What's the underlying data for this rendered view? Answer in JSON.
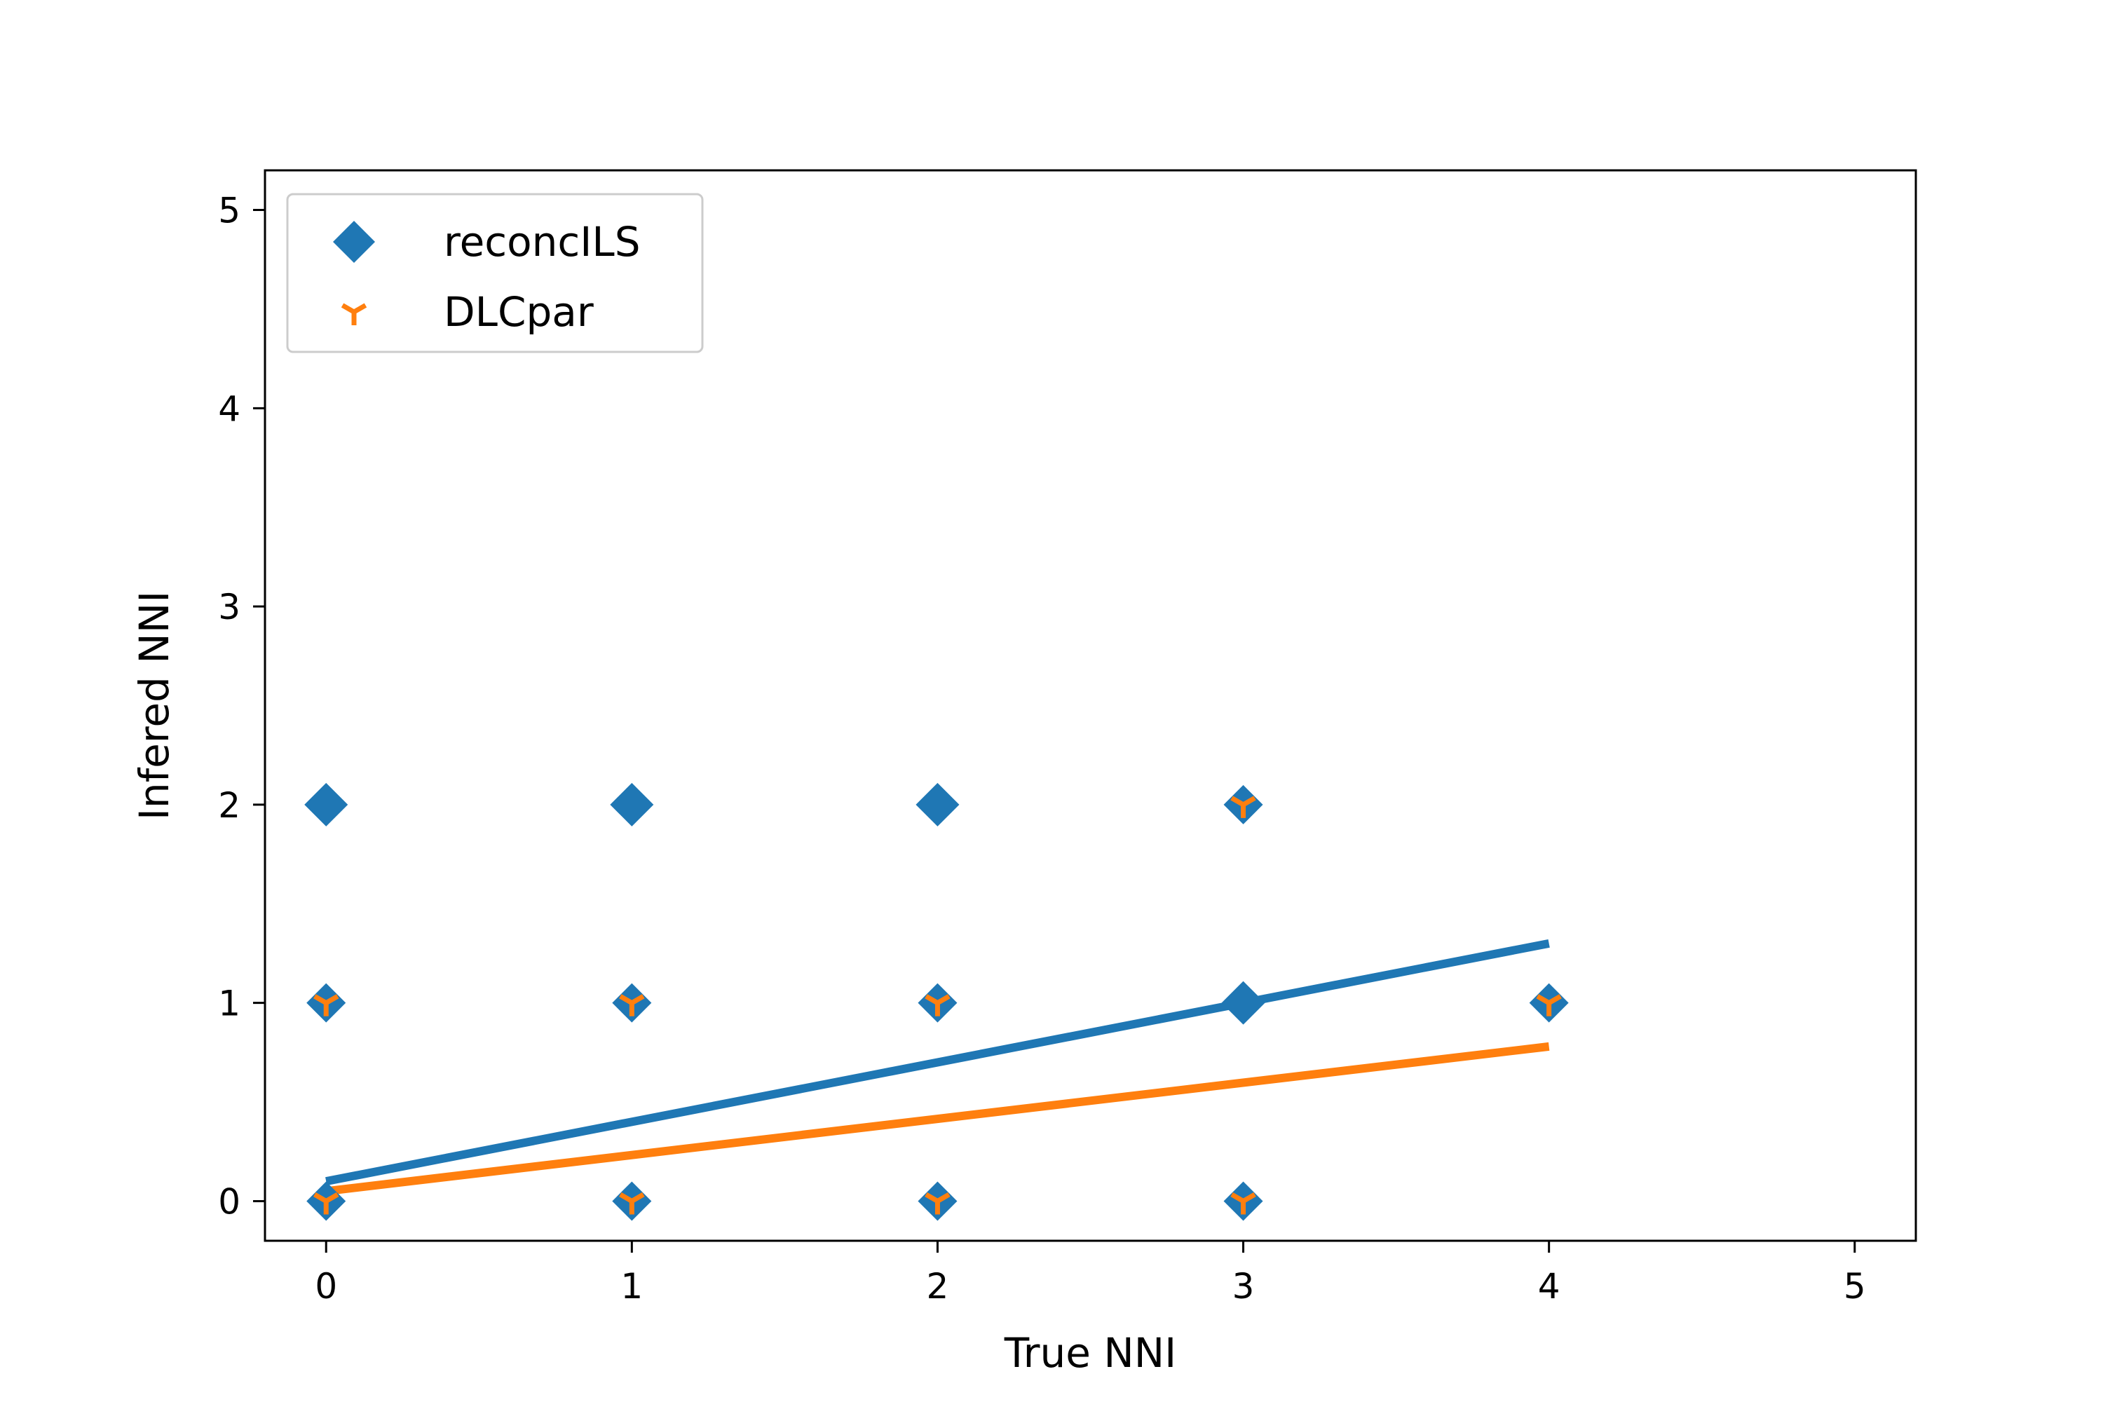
{
  "chart_data": {
    "type": "scatter",
    "xlabel": "True NNI",
    "ylabel": "Infered NNI",
    "xlim": [
      -0.2,
      5.2
    ],
    "ylim": [
      -0.2,
      5.2
    ],
    "xticks": [
      0,
      1,
      2,
      3,
      4,
      5
    ],
    "yticks": [
      0,
      1,
      2,
      3,
      4,
      5
    ],
    "grid": false,
    "legend_position": "upper-left",
    "series": [
      {
        "name": "reconcILS",
        "marker": "diamond",
        "color": "#1f77b4",
        "points": [
          {
            "x": 0,
            "y": 2
          },
          {
            "x": 0,
            "y": 1
          },
          {
            "x": 0,
            "y": 0
          },
          {
            "x": 1,
            "y": 2
          },
          {
            "x": 1,
            "y": 1
          },
          {
            "x": 1,
            "y": 0
          },
          {
            "x": 2,
            "y": 2
          },
          {
            "x": 2,
            "y": 1
          },
          {
            "x": 2,
            "y": 0
          },
          {
            "x": 3,
            "y": 2
          },
          {
            "x": 3,
            "y": 1
          },
          {
            "x": 3,
            "y": 0
          },
          {
            "x": 4,
            "y": 1
          }
        ],
        "fit_line": {
          "x": [
            0,
            4
          ],
          "y": [
            0.1,
            1.3
          ]
        }
      },
      {
        "name": "DLCpar",
        "marker": "tri_down",
        "color": "#ff7f0e",
        "points": [
          {
            "x": 0,
            "y": 1
          },
          {
            "x": 0,
            "y": 0
          },
          {
            "x": 1,
            "y": 1
          },
          {
            "x": 1,
            "y": 0
          },
          {
            "x": 2,
            "y": 1
          },
          {
            "x": 2,
            "y": 0
          },
          {
            "x": 3,
            "y": 2
          },
          {
            "x": 3,
            "y": 0
          },
          {
            "x": 4,
            "y": 1
          }
        ],
        "fit_line": {
          "x": [
            0,
            4
          ],
          "y": [
            0.05,
            0.78
          ]
        }
      }
    ]
  }
}
